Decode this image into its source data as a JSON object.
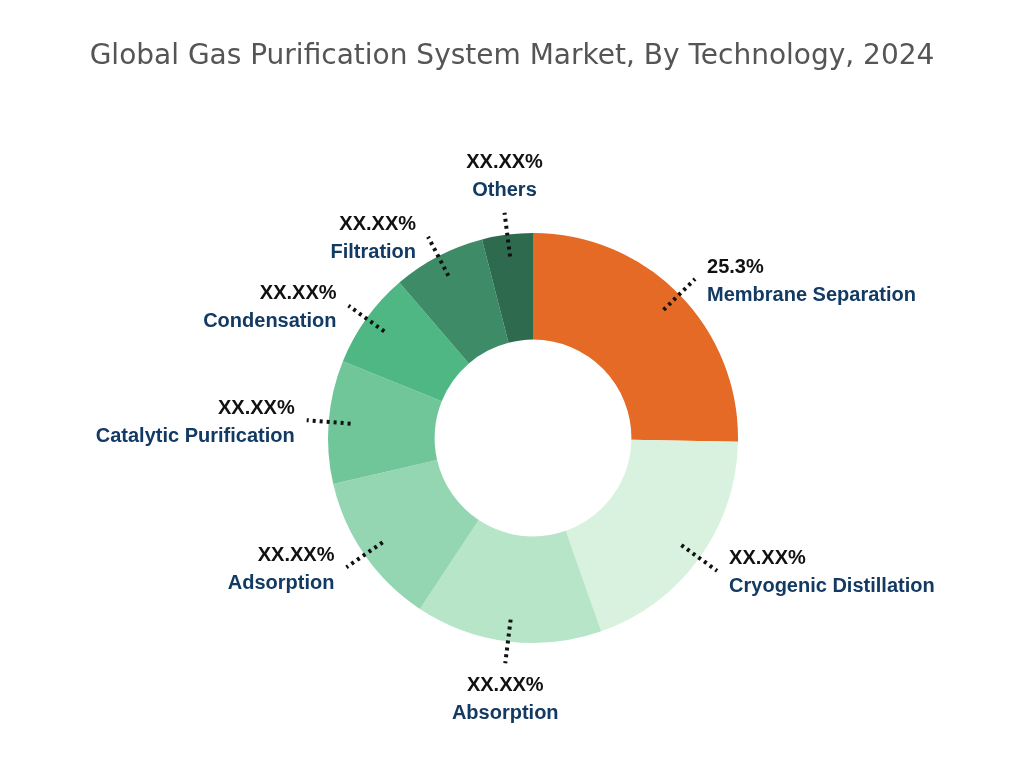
{
  "chart_data": {
    "type": "donut",
    "title": "Global Gas Purification System Market, By Technology, 2024",
    "categories": [
      "Membrane Separation",
      "Cryogenic Distillation",
      "Absorption",
      "Adsorption",
      "Catalytic Purification",
      "Condensation",
      "Filtration",
      "Others"
    ],
    "values": [
      25.3,
      19.3,
      14.7,
      12.1,
      9.7,
      7.6,
      7.3,
      4.0
    ],
    "value_labels": [
      "25.3%",
      "XX.XX%",
      "XX.XX%",
      "XX.XX%",
      "XX.XX%",
      "XX.XX%",
      "XX.XX%",
      "XX.XX%"
    ],
    "colors": [
      "#e46a25",
      "#d9f2df",
      "#b6e5c8",
      "#94d6b1",
      "#71c699",
      "#4eb784",
      "#3d8c67",
      "#2e6a4e"
    ],
    "legend": false
  }
}
